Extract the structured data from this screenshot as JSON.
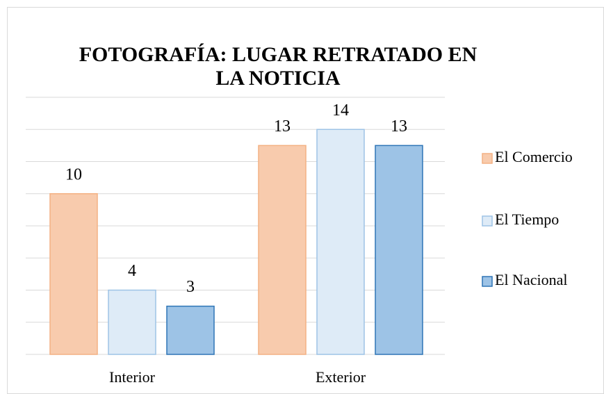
{
  "chart_data": {
    "type": "bar",
    "title": "FOTOGRAFÍA: LUGAR RETRATADO EN LA NOTICIA",
    "categories": [
      "Interior",
      "Exterior"
    ],
    "series": [
      {
        "name": "El Comercio",
        "color": "#f8cbad",
        "edgecolor": "#f4b183",
        "values": [
          10,
          13
        ]
      },
      {
        "name": "El Tiempo",
        "color": "#deebf7",
        "edgecolor": "#9dc3e6",
        "values": [
          4,
          14
        ]
      },
      {
        "name": "El Nacional",
        "color": "#9dc3e6",
        "edgecolor": "#2e75b6",
        "values": [
          3,
          13
        ]
      }
    ],
    "ylim": [
      0,
      16
    ],
    "yticks": [
      0,
      2,
      4,
      6,
      8,
      10,
      12,
      14,
      16
    ],
    "grid": true,
    "legend": "right"
  }
}
